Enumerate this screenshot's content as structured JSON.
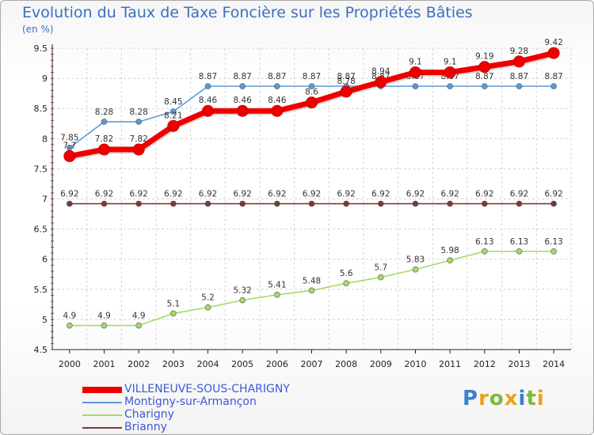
{
  "chart_data": {
    "type": "line",
    "title": "Evolution du Taux de Taxe Foncière sur les Propriétés Bâties",
    "ylabel": "(en %)",
    "xlabel": "",
    "ylim": [
      4.5,
      9.5
    ],
    "yticks": [
      "4.5",
      "5",
      "5.5",
      "6",
      "6.5",
      "7",
      "7.5",
      "8",
      "8.5",
      "9",
      "9.5"
    ],
    "categories": [
      "2000",
      "2001",
      "2002",
      "2003",
      "2004",
      "2005",
      "2006",
      "2007",
      "2008",
      "2009",
      "2010",
      "2011",
      "2012",
      "2013",
      "2014"
    ],
    "series": [
      {
        "name": "VILLENEUVE-SOUS-CHARIGNY",
        "color": "#ee0000",
        "values": [
          7.71,
          7.82,
          7.82,
          8.21,
          8.46,
          8.46,
          8.46,
          8.6,
          8.78,
          8.94,
          9.1,
          9.1,
          9.19,
          9.28,
          9.42
        ],
        "labels": [
          "7.7",
          "7.82",
          "7.82",
          "8.21",
          "8.46",
          "8.46",
          "8.46",
          "8.6",
          "8.78",
          "8.94",
          "9.1",
          "9.1",
          "9.19",
          "9.28",
          "9.42"
        ]
      },
      {
        "name": "Montigny-sur-Armançon",
        "color": "#5b9bd5",
        "values": [
          7.85,
          8.28,
          8.28,
          8.45,
          8.87,
          8.87,
          8.87,
          8.87,
          8.87,
          8.87,
          8.87,
          8.87,
          8.87,
          8.87,
          8.87
        ],
        "labels": [
          "7.85",
          "8.28",
          "8.28",
          "8.45",
          "8.87",
          "8.87",
          "8.87",
          "8.87",
          "8.87",
          "8.87",
          "8.87",
          "8.87",
          "8.87",
          "8.87",
          "8.87"
        ]
      },
      {
        "name": "Charigny",
        "color": "#a6d96a",
        "values": [
          4.9,
          4.9,
          4.9,
          5.1,
          5.2,
          5.32,
          5.41,
          5.48,
          5.6,
          5.7,
          5.83,
          5.98,
          6.13,
          6.13,
          6.13
        ],
        "labels": [
          "4.9",
          "4.9",
          "4.9",
          "5.1",
          "5.2",
          "5.32",
          "5.41",
          "5.48",
          "5.6",
          "5.7",
          "5.83",
          "5.98",
          "6.13",
          "6.13",
          "6.13"
        ]
      },
      {
        "name": "Brianny",
        "color": "#7b3a3a",
        "values": [
          6.92,
          6.92,
          6.92,
          6.92,
          6.92,
          6.92,
          6.92,
          6.92,
          6.92,
          6.92,
          6.92,
          6.92,
          6.92,
          6.92,
          6.92
        ],
        "labels": [
          "6.92",
          "6.92",
          "6.92",
          "6.92",
          "6.92",
          "6.92",
          "6.92",
          "6.92",
          "6.92",
          "6.92",
          "6.92",
          "6.92",
          "6.92",
          "6.92",
          "6.92"
        ]
      }
    ],
    "legend": "bottom-left"
  },
  "logo": {
    "text": "Proxiti"
  }
}
